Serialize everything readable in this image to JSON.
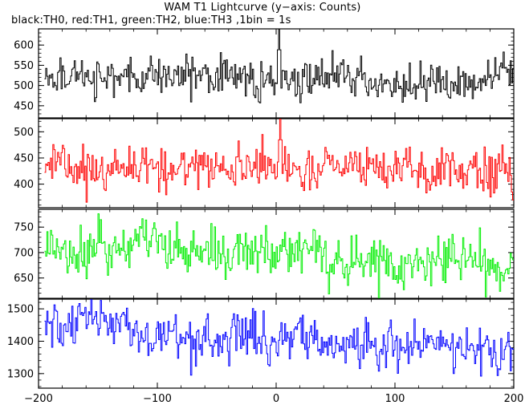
{
  "title": "WAM T1 Lightcurve (y−axis: Counts)",
  "subtitle": "black:TH0, red:TH1, green:TH2, blue:TH3 ,1bin = 1s",
  "chart_data": {
    "type": "line",
    "title": "WAM T1 Lightcurve (y−axis: Counts)",
    "subtitle": "black:TH0, red:TH1, green:TH2, blue:TH3 ,1bin = 1s",
    "xlim": [
      -200,
      200
    ],
    "x_ticks": [
      -200,
      -100,
      0,
      100,
      200
    ],
    "x_tick_labels": [
      "−200",
      "−100",
      "0",
      "100",
      "200"
    ],
    "bin_seconds": 1,
    "grid": false,
    "panels": [
      {
        "name": "TH0",
        "color": "#000000",
        "ylim": [
          420,
          640
        ],
        "y_ticks": [
          450,
          500,
          550,
          600
        ],
        "baseline": 525,
        "noise": 22,
        "trend": -15,
        "peak": {
          "x": 2,
          "value": 640
        }
      },
      {
        "name": "TH1",
        "color": "#ff0000",
        "ylim": [
          355,
          525
        ],
        "y_ticks": [
          400,
          450,
          500
        ],
        "baseline": 435,
        "noise": 20,
        "trend": -10,
        "peak": {
          "x": 3,
          "value": 525
        }
      },
      {
        "name": "TH2",
        "color": "#00ee00",
        "ylim": [
          610,
          785
        ],
        "y_ticks": [
          650,
          700,
          750
        ],
        "baseline": 718,
        "noise": 24,
        "trend": -45,
        "peak": null
      },
      {
        "name": "TH3",
        "color": "#0000ff",
        "ylim": [
          1255,
          1530
        ],
        "y_ticks": [
          1300,
          1400,
          1500
        ],
        "baseline": 1440,
        "noise": 35,
        "trend": -70,
        "peak": null
      }
    ]
  }
}
